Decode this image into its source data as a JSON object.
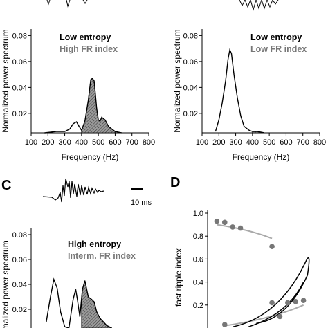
{
  "chart_data": [
    {
      "panel": "",
      "type": "area",
      "legend": [
        "Low entropy",
        "High FR index"
      ],
      "legend_colors": [
        "#000000",
        "#777777"
      ],
      "ylabel": "Normalized power spectrum",
      "xlabel": "Frequency (Hz)",
      "xlim": [
        100,
        800
      ],
      "ylim": [
        0.005,
        0.085
      ],
      "yticks": [
        "0.08",
        "0.06",
        "0.04",
        "0.02"
      ],
      "xticks": [
        "100",
        "200",
        "300",
        "400",
        "500",
        "600",
        "700",
        "800"
      ],
      "shaded_band": [
        400,
        600
      ],
      "x": [
        180,
        250,
        300,
        330,
        350,
        370,
        385,
        400,
        420,
        440,
        455,
        465,
        475,
        480,
        490,
        500,
        510,
        520,
        540,
        560,
        580,
        600,
        640
      ],
      "y": [
        0.005,
        0.006,
        0.006,
        0.008,
        0.012,
        0.0135,
        0.01,
        0.007,
        0.014,
        0.03,
        0.046,
        0.047,
        0.045,
        0.038,
        0.024,
        0.015,
        0.014,
        0.017,
        0.015,
        0.01,
        0.008,
        0.006,
        0.005
      ]
    },
    {
      "panel": "",
      "type": "area",
      "legend": [
        "Low entropy",
        "Low FR index"
      ],
      "legend_colors": [
        "#000000",
        "#777777"
      ],
      "ylabel": "Normalized power spectrum",
      "xlabel": "Frequency (Hz)",
      "xlim": [
        100,
        800
      ],
      "ylim": [
        0.005,
        0.085
      ],
      "yticks": [
        "0.08",
        "0.06",
        "0.04",
        "0.02"
      ],
      "xticks": [
        "100",
        "200",
        "300",
        "400",
        "500",
        "600",
        "700",
        "800"
      ],
      "shaded_band": [
        400,
        600
      ],
      "x": [
        180,
        200,
        220,
        240,
        255,
        265,
        275,
        290,
        310,
        330,
        350,
        380,
        400,
        430,
        470
      ],
      "y": [
        0.006,
        0.015,
        0.028,
        0.045,
        0.062,
        0.069,
        0.066,
        0.05,
        0.032,
        0.018,
        0.01,
        0.007,
        0.006,
        0.006,
        0.005
      ]
    },
    {
      "panel": "C",
      "type": "area",
      "legend": [
        "High entropy",
        "Interm. FR index"
      ],
      "legend_colors": [
        "#000000",
        "#777777"
      ],
      "ylabel": "Normalized power spectrum",
      "xlabel": "",
      "xlim": [
        100,
        800
      ],
      "ylim": [
        0.005,
        0.085
      ],
      "yticks": [
        "0.08",
        "0.06",
        "0.04",
        "0.02"
      ],
      "xticks": [],
      "shaded_band": [
        400,
        600
      ],
      "scale_bar_label": "10 ms",
      "x": [
        190,
        215,
        235,
        255,
        275,
        300,
        325,
        350,
        365,
        375,
        390,
        405,
        420,
        440,
        460,
        475,
        490,
        505,
        515,
        530,
        550,
        580
      ],
      "y": [
        0.01,
        0.03,
        0.044,
        0.037,
        0.018,
        0.006,
        0.005,
        0.028,
        0.036,
        0.028,
        0.014,
        0.036,
        0.043,
        0.03,
        0.028,
        0.026,
        0.018,
        0.014,
        0.012,
        0.01,
        0.007,
        0.005
      ]
    },
    {
      "panel": "D",
      "type": "scatter",
      "ylabel": "fast ripple index",
      "ylim": [
        0,
        1.0
      ],
      "yticks": [
        "1.0",
        "0.8",
        "0.6",
        "0.4",
        "0.2"
      ],
      "series": [
        {
          "x": [
            1,
            2,
            3,
            4,
            8
          ],
          "y": [
            0.93,
            0.92,
            0.88,
            0.87,
            0.71
          ]
        },
        {
          "x": [
            2,
            8,
            9,
            10,
            11,
            12
          ],
          "y": [
            0.03,
            0.22,
            0.1,
            0.22,
            0.23,
            0.24
          ]
        }
      ]
    }
  ],
  "colors": {
    "line": "#000000",
    "shade": "#777777",
    "scatter": "#777777"
  }
}
